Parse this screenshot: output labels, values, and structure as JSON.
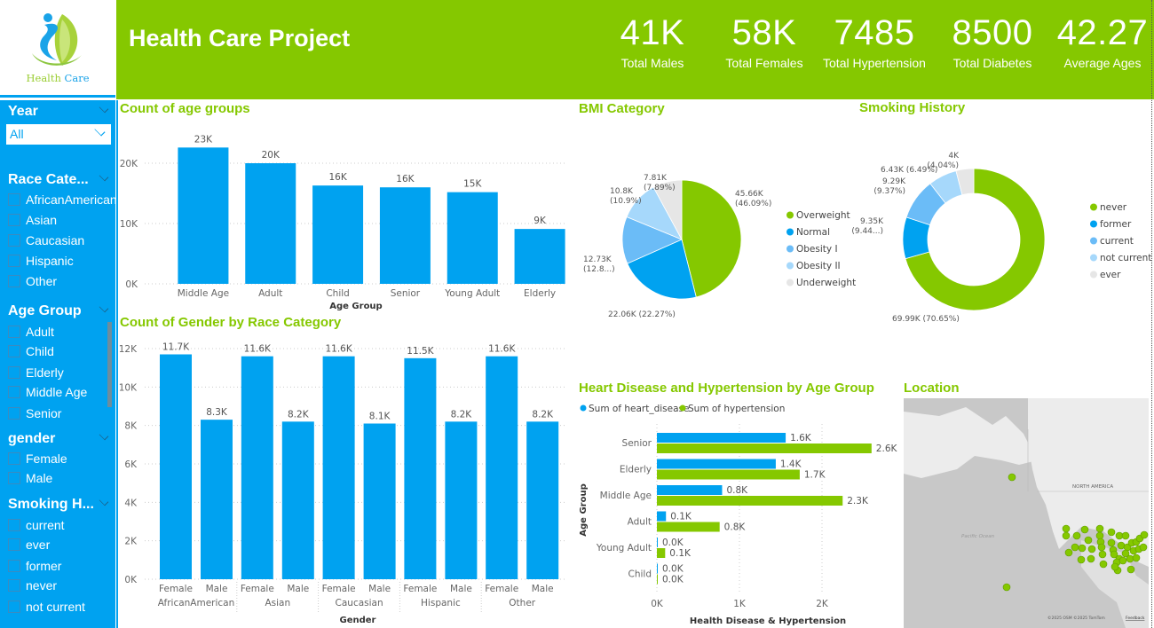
{
  "logo": {
    "word1": "Health",
    "word2": "Care",
    "icon": "health-care-leaf-logo"
  },
  "header": {
    "title": "Health Care Project",
    "kpis": [
      {
        "value": "41K",
        "label": "Total Males"
      },
      {
        "value": "58K",
        "label": "Total Females"
      },
      {
        "value": "7485",
        "label": "Total Hypertension"
      },
      {
        "value": "8500",
        "label": "Total Diabetes"
      },
      {
        "value": "42.27",
        "label": "Average Ages"
      }
    ]
  },
  "colors": {
    "brand_green": "#85c800",
    "brand_blue": "#00a2f0",
    "light_blue": "#6bbcf7",
    "pale_blue": "#a6d8fb",
    "light_gray": "#e6e6e6"
  },
  "sidebar": {
    "year": {
      "title": "Year",
      "selected": "All"
    },
    "race": {
      "title": "Race Cate...",
      "options": [
        "AfricanAmerican",
        "Asian",
        "Caucasian",
        "Hispanic",
        "Other"
      ]
    },
    "age_group": {
      "title": "Age Group",
      "options": [
        "Adult",
        "Child",
        "Elderly",
        "Middle Age",
        "Senior"
      ]
    },
    "gender": {
      "title": "gender",
      "options": [
        "Female",
        "Male"
      ]
    },
    "smoking": {
      "title": "Smoking H...",
      "options": [
        "current",
        "ever",
        "former",
        "never",
        "not current"
      ]
    }
  },
  "map": {
    "title": "Location",
    "labels": {
      "continent": "NORTH AMERICA",
      "ocean": "Pacific Ocean"
    },
    "attribution": "©2025 OSM  ©2025 TomTom",
    "feedback": "Feedback"
  },
  "chart_data": [
    {
      "id": "age_groups",
      "type": "bar",
      "title": "Count of age groups",
      "xlabel": "Age Group",
      "ylabel": "",
      "categories": [
        "Middle Age",
        "Adult",
        "Child",
        "Senior",
        "Young Adult",
        "Elderly"
      ],
      "values": [
        22600,
        20000,
        16300,
        16000,
        15200,
        9100
      ],
      "data_labels": [
        "23K",
        "20K",
        "16K",
        "16K",
        "15K",
        "9K"
      ],
      "yticks": [
        "0K",
        "10K",
        "20K"
      ],
      "ylim": [
        0,
        25000
      ],
      "grid": true
    },
    {
      "id": "gender_race",
      "type": "bar",
      "title": "Count of Gender by Race Category",
      "xlabel": "Gender",
      "ylabel": "",
      "groups": [
        "AfricanAmerican",
        "Asian",
        "Caucasian",
        "Hispanic",
        "Other"
      ],
      "categories": [
        "Female",
        "Male"
      ],
      "values": [
        [
          11700,
          8300
        ],
        [
          11600,
          8200
        ],
        [
          11600,
          8100
        ],
        [
          11500,
          8200
        ],
        [
          11600,
          8200
        ]
      ],
      "data_labels": [
        [
          "11.7K",
          "8.3K"
        ],
        [
          "11.6K",
          "8.2K"
        ],
        [
          "11.6K",
          "8.1K"
        ],
        [
          "11.5K",
          "8.2K"
        ],
        [
          "11.6K",
          "8.2K"
        ]
      ],
      "yticks": [
        "0K",
        "2K",
        "4K",
        "6K",
        "8K",
        "10K",
        "12K"
      ],
      "ylim": [
        0,
        12000
      ],
      "grid": true
    },
    {
      "id": "bmi",
      "type": "pie",
      "title": "BMI Category",
      "legend": "right",
      "slices": [
        {
          "label": "Overweight",
          "value": 45660,
          "pct": 46.09,
          "text": "45.66K\n(46.09%)"
        },
        {
          "label": "Normal",
          "value": 22060,
          "pct": 22.27,
          "text": "22.06K (22.27%)"
        },
        {
          "label": "Obesity I",
          "value": 12730,
          "pct": 12.85,
          "text": "12.73K\n(12.8...)"
        },
        {
          "label": "Obesity II",
          "value": 10800,
          "pct": 10.9,
          "text": "10.8K\n(10.9%)"
        },
        {
          "label": "Underweight",
          "value": 7810,
          "pct": 7.89,
          "text": "7.81K\n(7.89%)"
        }
      ]
    },
    {
      "id": "smoking",
      "type": "pie",
      "donut": true,
      "title": "Smoking History",
      "legend": "right",
      "slices": [
        {
          "label": "never",
          "value": 69990,
          "pct": 70.65,
          "text": "69.99K (70.65%)"
        },
        {
          "label": "former",
          "value": 9350,
          "pct": 9.44,
          "text": "9.35K\n(9.44...)"
        },
        {
          "label": "current",
          "value": 9290,
          "pct": 9.37,
          "text": "9.29K\n(9.37%)"
        },
        {
          "label": "not current",
          "value": 6430,
          "pct": 6.49,
          "text": "6.43K (6.49%)"
        },
        {
          "label": "ever",
          "value": 4000,
          "pct": 4.04,
          "text": "4K\n(4.04%)"
        }
      ]
    },
    {
      "id": "heart_hyper",
      "type": "bar",
      "orientation": "horizontal",
      "title": "Heart Disease and Hypertension by Age Group",
      "xlabel": "Health Disease & Hypertension",
      "ylabel": "Age Group",
      "categories": [
        "Senior",
        "Elderly",
        "Middle Age",
        "Adult",
        "Young Adult",
        "Child"
      ],
      "series": [
        {
          "name": "Sum of heart_disease",
          "values": [
            1560,
            1440,
            790,
            110,
            10,
            5
          ],
          "labels": [
            "1.6K",
            "1.4K",
            "0.8K",
            "0.1K",
            "0.0K",
            "0.0K"
          ]
        },
        {
          "name": "Sum of hypertension",
          "values": [
            2600,
            1730,
            2250,
            760,
            100,
            10
          ],
          "labels": [
            "2.6K",
            "1.7K",
            "2.3K",
            "0.8K",
            "0.1K",
            "0.0K"
          ]
        }
      ],
      "xticks": [
        "0K",
        "1K",
        "2K"
      ],
      "xlim": [
        0,
        2700
      ],
      "legend": "top-left",
      "grid": true
    }
  ]
}
